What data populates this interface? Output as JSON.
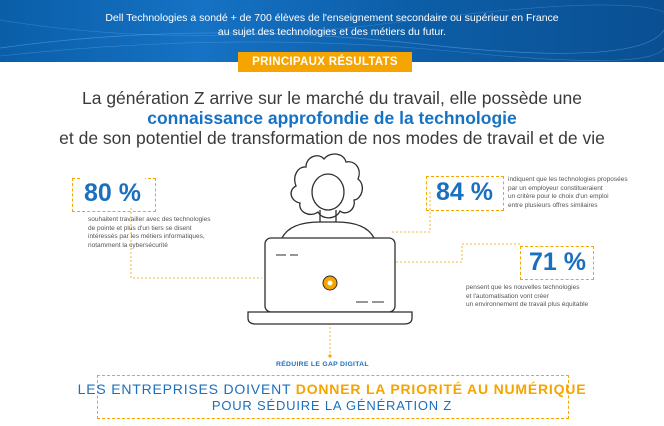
{
  "banner": {
    "line1": "Dell Technologies a sondé + de 700 élèves de l'enseignement secondaire ou supérieur en France",
    "line2": "au sujet des technologies et des métiers du futur."
  },
  "badge": {
    "label": "PRINCIPAUX RÉSULTATS"
  },
  "headline": {
    "line1": "La génération Z arrive sur le marché du travail, elle possède une",
    "line2": "connaissance approfondie de la technologie",
    "line3": "et de son potentiel de transformation de nos modes de travail et de vie"
  },
  "stats": [
    {
      "value": "80 %",
      "lines": [
        "souhaitent travailler avec des technologies",
        "de pointe et plus d'un tiers se disent",
        "intéressés par les métiers informatiques,",
        "notamment la cybersécurité"
      ]
    },
    {
      "value": "84 %",
      "lines": [
        "indiquent que les technologies proposées",
        "par un employeur constitueraient",
        "un critère pour le choix d'un emploi",
        "entre plusieurs offres similaires"
      ]
    },
    {
      "value": "71 %",
      "lines": [
        "pensent que les nouvelles technologies",
        "et l'automatisation vont créer",
        "un environnement de travail plus équitable"
      ]
    }
  ],
  "gap": {
    "label": "RÉDUIRE LE GAP DIGITAL"
  },
  "cta": {
    "line1_a": "LES ENTREPRISES DOIVENT ",
    "line1_b": "DONNER LA PRIORITÉ AU NUMÉRIQUE",
    "line2": "POUR SÉDUIRE LA GÉNÉRATION Z"
  },
  "colors": {
    "blue": "#1b6fbf",
    "orange": "#f5a400",
    "banner": "#0a5ea8"
  }
}
